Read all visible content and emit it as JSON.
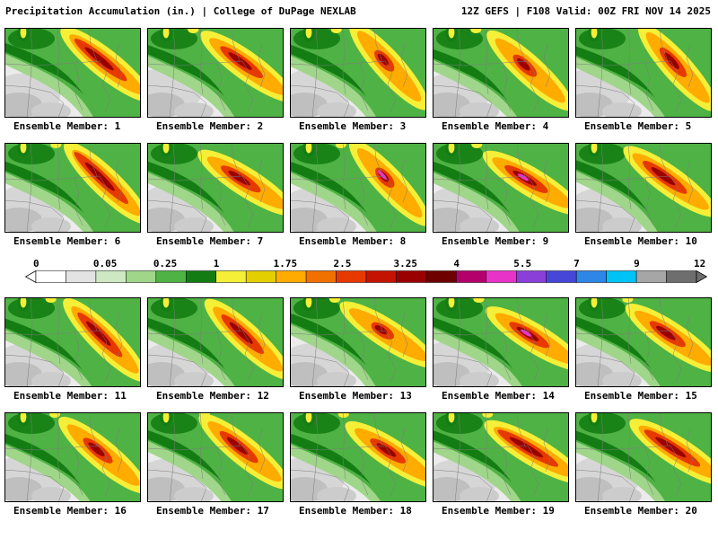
{
  "header": {
    "left": "Precipitation Accumulation (in.) | College of DuPage NEXLAB",
    "right": "12Z GEFS | F108 Valid: 00Z FRI NOV 14 2025"
  },
  "colorbar": {
    "tick_labels": [
      "0",
      "0.05",
      "0.25",
      "1",
      "1.75",
      "2.5",
      "3.25",
      "4",
      "5.5",
      "7",
      "9",
      "12"
    ],
    "segment_colors": [
      "#ffffff",
      "#e3e3e3",
      "#cfe8c4",
      "#9fd689",
      "#4fb244",
      "#137d13",
      "#f5ef38",
      "#e3cf00",
      "#ffab00",
      "#f07000",
      "#e63900",
      "#c41400",
      "#9b0000",
      "#6e0000",
      "#b3006b",
      "#e833c8",
      "#8a3fd9",
      "#4646d9",
      "#2e86e6",
      "#00c3f5",
      "#a6a6a6",
      "#6e6e6e"
    ],
    "left_arrow_color": "#ffffff",
    "right_arrow_color": "#6e6e6e"
  },
  "panels": [
    {
      "label": "Ensemble Member: 1"
    },
    {
      "label": "Ensemble Member: 2"
    },
    {
      "label": "Ensemble Member: 3"
    },
    {
      "label": "Ensemble Member: 4"
    },
    {
      "label": "Ensemble Member: 5"
    },
    {
      "label": "Ensemble Member: 6"
    },
    {
      "label": "Ensemble Member: 7"
    },
    {
      "label": "Ensemble Member: 8"
    },
    {
      "label": "Ensemble Member: 9"
    },
    {
      "label": "Ensemble Member: 10"
    },
    {
      "label": "Ensemble Member: 11"
    },
    {
      "label": "Ensemble Member: 12"
    },
    {
      "label": "Ensemble Member: 13"
    },
    {
      "label": "Ensemble Member: 14"
    },
    {
      "label": "Ensemble Member: 15"
    },
    {
      "label": "Ensemble Member: 16"
    },
    {
      "label": "Ensemble Member: 17"
    },
    {
      "label": "Ensemble Member: 18"
    },
    {
      "label": "Ensemble Member: 19"
    },
    {
      "label": "Ensemble Member: 20"
    }
  ]
}
